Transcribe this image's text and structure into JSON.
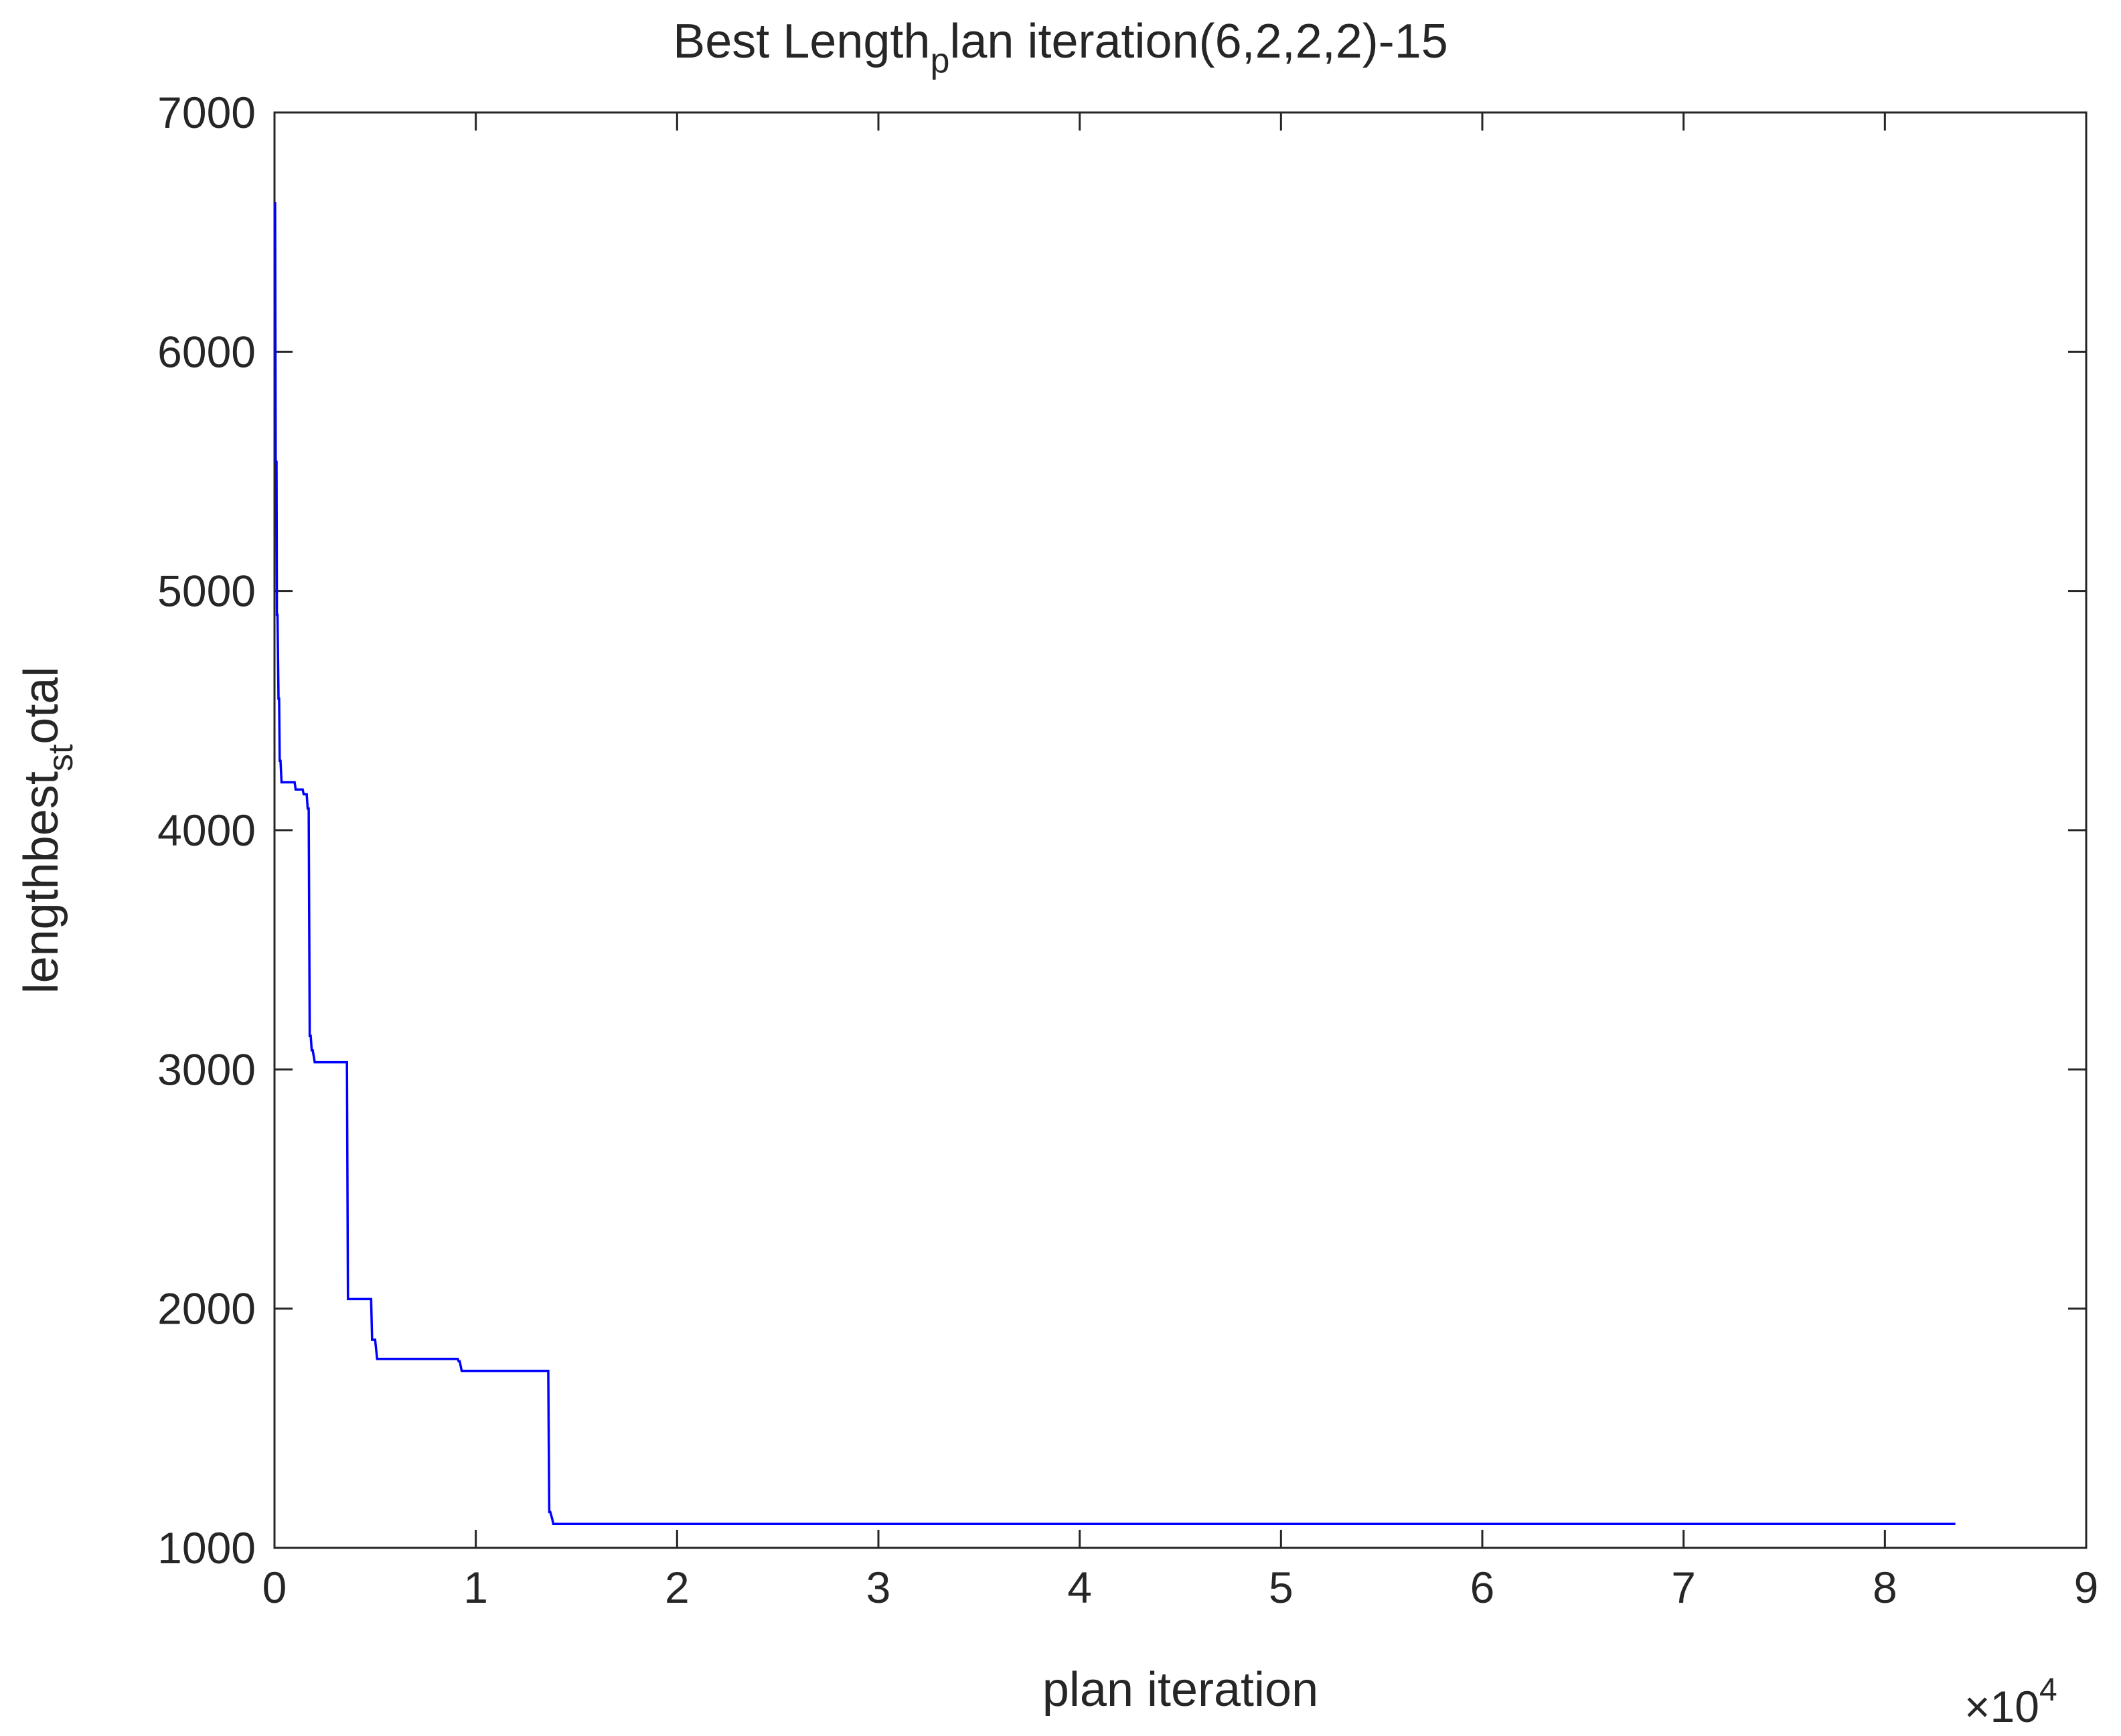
{
  "chart_data": {
    "type": "line",
    "title": {
      "main": "Best Length",
      "sub": "p",
      "rest": "lan iteration(6,2,2,2)-15"
    },
    "xlabel": "plan iteration",
    "ylabel": {
      "main": "lengthbest",
      "sub": "st",
      "rest": "otal"
    },
    "xlim": [
      0,
      90000
    ],
    "ylim": [
      1000,
      7000
    ],
    "x_ticks": [
      0,
      10000,
      20000,
      30000,
      40000,
      50000,
      60000,
      70000,
      80000,
      90000
    ],
    "x_tick_labels": [
      "0",
      "1",
      "2",
      "3",
      "4",
      "5",
      "6",
      "7",
      "8",
      "9"
    ],
    "x_exponent": {
      "base": "×10",
      "power": "4"
    },
    "y_ticks": [
      1000,
      2000,
      3000,
      4000,
      5000,
      6000,
      7000
    ],
    "y_tick_labels": [
      "1000",
      "2000",
      "3000",
      "4000",
      "5000",
      "6000",
      "7000"
    ],
    "grid": false,
    "line_color": "#0000ff",
    "series": [
      {
        "x": [
          0,
          30,
          60,
          100,
          120,
          150,
          200,
          230,
          260,
          300,
          350,
          400,
          700,
          1000,
          1050,
          1400,
          1450,
          1600,
          1650,
          1700,
          1750,
          1800,
          1850,
          1900,
          2000,
          2100,
          3600,
          3650,
          3700,
          4800,
          4850,
          5000,
          5050,
          5100,
          9100,
          9150,
          9200,
          9300,
          13600,
          13650,
          13700,
          13800,
          13850,
          13900,
          83500
        ],
        "y": [
          6620,
          6620,
          5540,
          5540,
          4900,
          4900,
          4550,
          4550,
          4290,
          4290,
          4200,
          4200,
          4200,
          4200,
          4170,
          4170,
          4150,
          4150,
          4090,
          4090,
          3140,
          3140,
          3080,
          3080,
          3030,
          3030,
          3030,
          2040,
          2040,
          2040,
          1870,
          1870,
          1830,
          1790,
          1790,
          1780,
          1780,
          1740,
          1740,
          1150,
          1150,
          1120,
          1100,
          1100,
          1100
        ]
      }
    ]
  }
}
